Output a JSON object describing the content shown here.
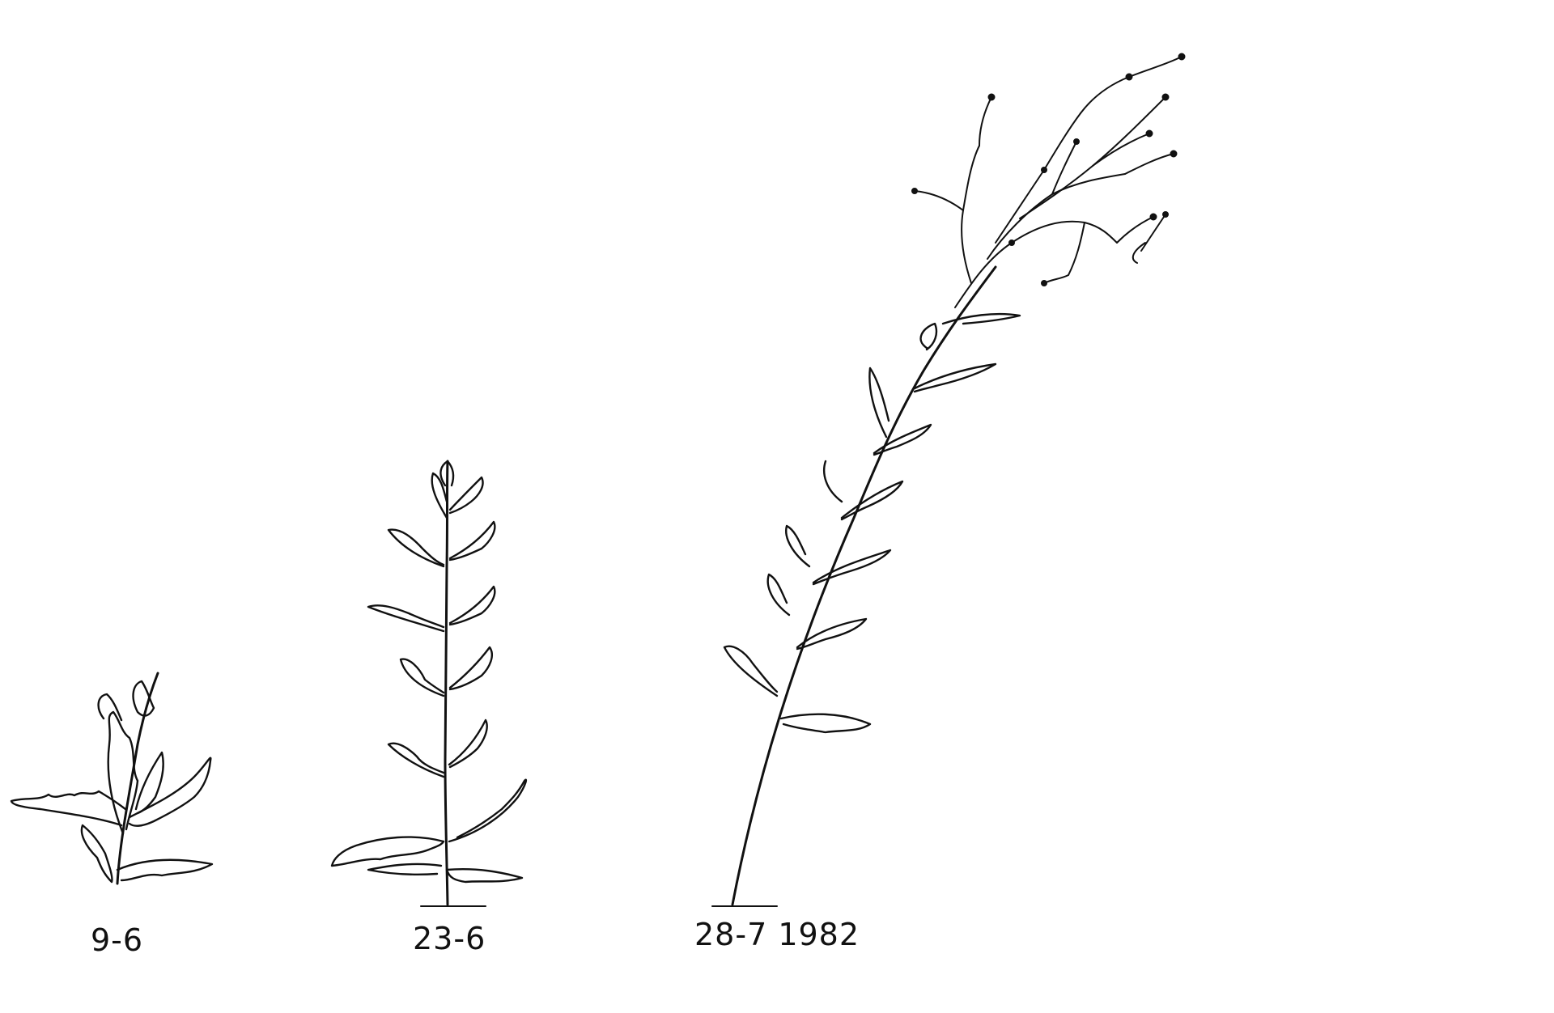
{
  "figure": {
    "stages": [
      {
        "label": "9-6"
      },
      {
        "label": "23-6"
      },
      {
        "label": "28-7 1982"
      }
    ]
  }
}
